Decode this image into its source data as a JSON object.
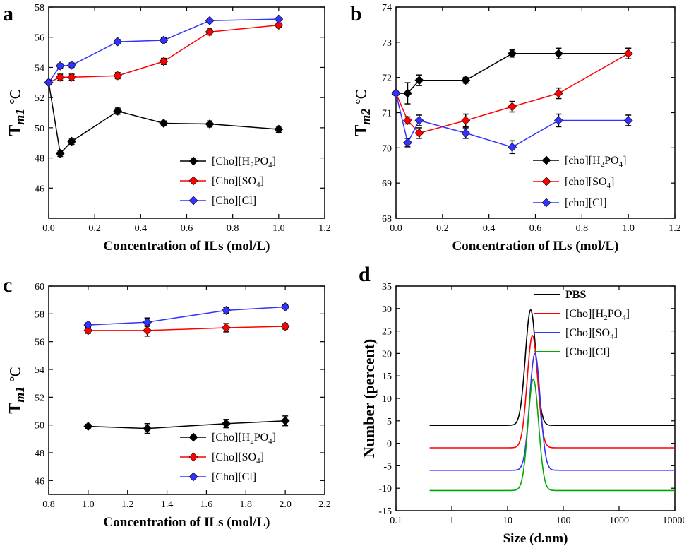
{
  "chart_data": [
    {
      "panel": "a",
      "type": "line",
      "xlabel": "Concentration of ILs (mol/L)",
      "ylabel_main": "T",
      "ylabel_sub": "m1",
      "ylabel_unit": " ℃",
      "xlim": [
        0.0,
        1.2
      ],
      "ylim": [
        44,
        58
      ],
      "xticks": [
        "0.0",
        "0.2",
        "0.4",
        "0.6",
        "0.8",
        "1.0",
        "1.2"
      ],
      "yticks": [
        "46",
        "48",
        "50",
        "52",
        "54",
        "56",
        "58"
      ],
      "xtick_values": [
        0.0,
        0.2,
        0.4,
        0.6,
        0.8,
        1.0,
        1.2
      ],
      "ytick_values": [
        46,
        48,
        50,
        52,
        54,
        56,
        58
      ],
      "legend_position": "bottom-right",
      "series": [
        {
          "name": "[Cho][H2PO4]",
          "color": "#000000",
          "x": [
            0.0,
            0.05,
            0.1,
            0.3,
            0.5,
            0.7,
            1.0
          ],
          "y": [
            53.0,
            48.3,
            49.1,
            51.1,
            50.3,
            50.25,
            49.9
          ],
          "err": [
            0.15,
            0.2,
            0.2,
            0.2,
            0.15,
            0.2,
            0.2
          ]
        },
        {
          "name": "[Cho][SO4]",
          "color": "#ff0000",
          "x": [
            0.0,
            0.05,
            0.1,
            0.3,
            0.5,
            0.7,
            1.0
          ],
          "y": [
            53.0,
            53.35,
            53.35,
            53.45,
            54.4,
            56.35,
            56.8
          ],
          "err": [
            0.15,
            0.2,
            0.2,
            0.2,
            0.2,
            0.2,
            0.15
          ]
        },
        {
          "name": "[Cho][Cl]",
          "color": "#3333ff",
          "x": [
            0.0,
            0.05,
            0.1,
            0.3,
            0.5,
            0.7,
            1.0
          ],
          "y": [
            53.0,
            54.1,
            54.15,
            55.7,
            55.8,
            57.1,
            57.2
          ],
          "err": [
            0.15,
            0.15,
            0.15,
            0.15,
            0.15,
            0.15,
            0.1
          ]
        }
      ]
    },
    {
      "panel": "b",
      "type": "line",
      "xlabel": "Concentration of ILs (mol/L)",
      "ylabel_main": "T",
      "ylabel_sub": "m2",
      "ylabel_unit": " ℃",
      "xlim": [
        0.0,
        1.2
      ],
      "ylim": [
        68,
        74
      ],
      "xticks": [
        "0.0",
        "0.2",
        "0.4",
        "0.6",
        "0.8",
        "1.0",
        "1.2"
      ],
      "yticks": [
        "68",
        "69",
        "70",
        "71",
        "72",
        "73",
        "74"
      ],
      "xtick_values": [
        0.0,
        0.2,
        0.4,
        0.6,
        0.8,
        1.0,
        1.2
      ],
      "ytick_values": [
        68,
        69,
        70,
        71,
        72,
        73,
        74
      ],
      "legend_position": "bottom-right",
      "series": [
        {
          "name": "[cho][H2PO4]",
          "color": "#000000",
          "x": [
            0.0,
            0.05,
            0.1,
            0.3,
            0.5,
            0.7,
            1.0
          ],
          "y": [
            71.55,
            71.55,
            71.92,
            71.92,
            72.68,
            72.68,
            72.68
          ],
          "err": [
            0.05,
            0.3,
            0.15,
            0.08,
            0.1,
            0.15,
            0.15
          ]
        },
        {
          "name": "[cho][SO4]",
          "color": "#ff0000",
          "x": [
            0.0,
            0.05,
            0.1,
            0.3,
            0.5,
            0.7,
            1.0
          ],
          "y": [
            71.55,
            70.78,
            70.42,
            70.78,
            71.17,
            71.55,
            72.68
          ],
          "err": [
            0.05,
            0.1,
            0.15,
            0.18,
            0.15,
            0.15,
            0.15
          ]
        },
        {
          "name": "[cho][Cl]",
          "color": "#3333ff",
          "x": [
            0.0,
            0.05,
            0.1,
            0.3,
            0.5,
            0.7,
            1.0
          ],
          "y": [
            71.55,
            70.15,
            70.78,
            70.42,
            70.02,
            70.78,
            70.78
          ],
          "err": [
            0.05,
            0.12,
            0.15,
            0.15,
            0.18,
            0.18,
            0.15
          ]
        }
      ]
    },
    {
      "panel": "c",
      "type": "line",
      "xlabel": "Concentration of ILs (mol/L)",
      "ylabel_main": "T",
      "ylabel_sub": "m1",
      "ylabel_unit": " ℃",
      "xlim": [
        0.8,
        2.2
      ],
      "ylim": [
        45,
        60
      ],
      "xticks": [
        "0.8",
        "1.0",
        "1.2",
        "1.4",
        "1.6",
        "1.8",
        "2.0",
        "2.2"
      ],
      "yticks": [
        "46",
        "48",
        "50",
        "52",
        "54",
        "56",
        "58",
        "60"
      ],
      "xtick_values": [
        0.8,
        1.0,
        1.2,
        1.4,
        1.6,
        1.8,
        2.0,
        2.2
      ],
      "ytick_values": [
        46,
        48,
        50,
        52,
        54,
        56,
        58,
        60
      ],
      "legend_position": "bottom-right",
      "series": [
        {
          "name": "[Cho][H2PO4]",
          "color": "#000000",
          "x": [
            1.0,
            1.3,
            1.7,
            2.0
          ],
          "y": [
            49.9,
            49.75,
            50.1,
            50.3
          ],
          "err": [
            0.15,
            0.35,
            0.3,
            0.35
          ]
        },
        {
          "name": "[Cho][SO4]",
          "color": "#ff0000",
          "x": [
            1.0,
            1.3,
            1.7,
            2.0
          ],
          "y": [
            56.8,
            56.8,
            57.0,
            57.1
          ],
          "err": [
            0.2,
            0.4,
            0.3,
            0.2
          ]
        },
        {
          "name": "[Cho][Cl]",
          "color": "#3333ff",
          "x": [
            1.0,
            1.3,
            1.7,
            2.0
          ],
          "y": [
            57.2,
            57.4,
            58.25,
            58.5
          ],
          "err": [
            0.15,
            0.3,
            0.2,
            0.15
          ]
        }
      ]
    },
    {
      "panel": "d",
      "type": "line",
      "xlabel": "Size (d.nm)",
      "ylabel": "Number (percent)",
      "xscale": "log",
      "xlim": [
        0.1,
        10000
      ],
      "ylim": [
        -15,
        35
      ],
      "xticks": [
        "0.1",
        "1",
        "10",
        "100",
        "1000",
        "10000"
      ],
      "yticks": [
        "-15",
        "-10",
        "-5",
        "0",
        "5",
        "10",
        "15",
        "20",
        "25",
        "30",
        "35"
      ],
      "xtick_values": [
        0.1,
        1,
        10,
        100,
        1000,
        10000
      ],
      "ytick_values": [
        -15,
        -10,
        -5,
        0,
        5,
        10,
        15,
        20,
        25,
        30,
        35
      ],
      "legend_position": "top-right",
      "series": [
        {
          "name": "PBS",
          "color": "#000000",
          "baseline": 4.0,
          "peak": 29.7,
          "center": 26,
          "xmin": 0.4,
          "xmax": 10000
        },
        {
          "name": "[Cho][H2PO4]",
          "color": "#ff0000",
          "baseline": -1.0,
          "peak": 24.0,
          "center": 28,
          "xmin": 0.4,
          "xmax": 10000
        },
        {
          "name": "[Cho][SO4]",
          "color": "#3333ff",
          "baseline": -6.0,
          "peak": 20.0,
          "center": 31,
          "xmin": 0.4,
          "xmax": 10000
        },
        {
          "name": "[Cho][Cl]",
          "color": "#00aa00",
          "baseline": -10.5,
          "peak": 14.3,
          "center": 29,
          "xmin": 0.4,
          "xmax": 10000
        }
      ]
    }
  ]
}
